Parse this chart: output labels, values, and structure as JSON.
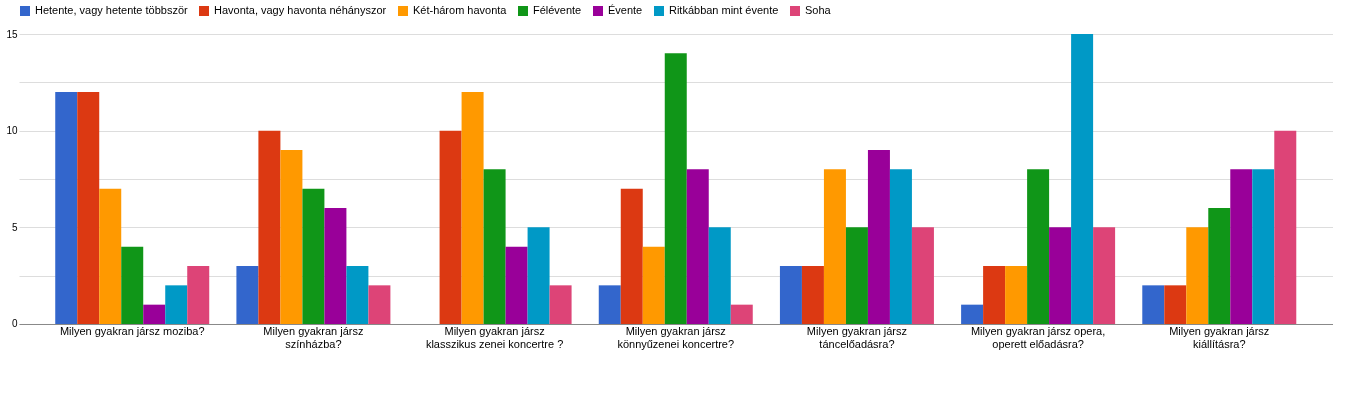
{
  "chart_data": {
    "type": "bar",
    "categories": [
      "Milyen gyakran jársz moziba?",
      "Milyen gyakran jársz színházba?",
      "Milyen gyakran jársz klasszikus zenei koncertre ?",
      "Milyen gyakran jársz könnyűzenei koncertre?",
      "Milyen gyakran jársz táncelőadásra?",
      "Milyen gyakran jársz opera, operett előadásra?",
      "Milyen gyakran jársz kiállításra?"
    ],
    "series": [
      {
        "name": "Hetente, vagy hetente többször",
        "color": "#3366cc",
        "values": [
          12,
          3,
          0,
          2,
          3,
          1,
          2
        ]
      },
      {
        "name": "Havonta, vagy havonta néhányszor",
        "color": "#dc3912",
        "values": [
          12,
          10,
          10,
          7,
          3,
          3,
          2
        ]
      },
      {
        "name": "Két-három havonta",
        "color": "#ff9900",
        "values": [
          7,
          9,
          12,
          4,
          8,
          3,
          5
        ]
      },
      {
        "name": "Félévente",
        "color": "#109618",
        "values": [
          4,
          7,
          8,
          14,
          5,
          8,
          6
        ]
      },
      {
        "name": "Évente",
        "color": "#990099",
        "values": [
          1,
          6,
          4,
          8,
          9,
          5,
          8
        ]
      },
      {
        "name": "Ritkábban mint évente",
        "color": "#0099c6",
        "values": [
          2,
          3,
          5,
          5,
          8,
          15,
          8
        ]
      },
      {
        "name": "Soha",
        "color": "#dd4477",
        "values": [
          3,
          2,
          2,
          1,
          5,
          5,
          10
        ]
      }
    ],
    "ylim": [
      0,
      15
    ],
    "yticks": [
      0,
      {
        "value": 2.5,
        "label": null
      },
      5,
      {
        "value": 7.5,
        "label": null
      },
      10,
      {
        "value": 12.5,
        "label": null
      },
      15
    ],
    "grid": "y",
    "legend": "top"
  }
}
